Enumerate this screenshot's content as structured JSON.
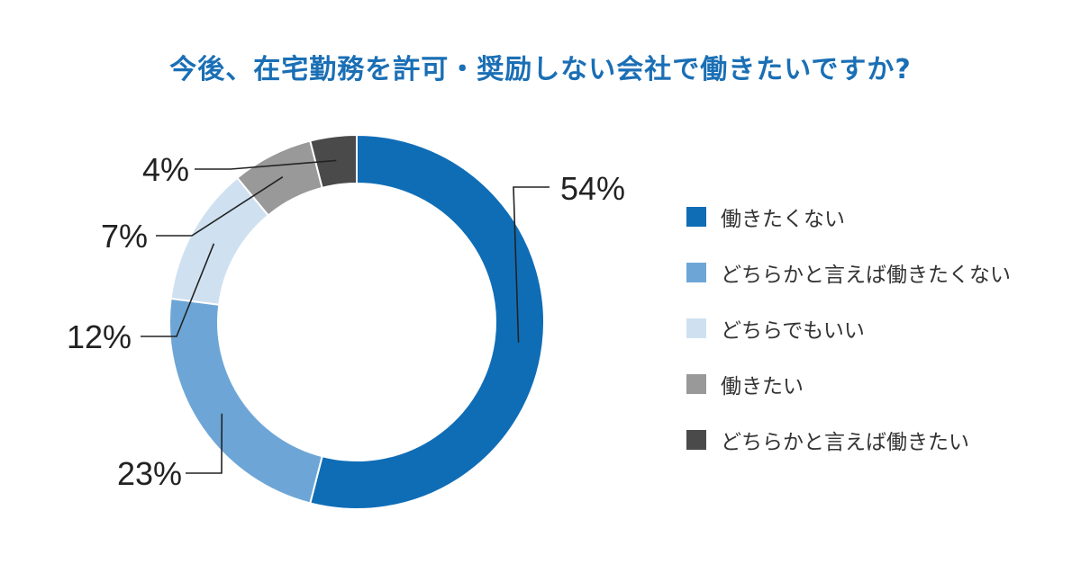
{
  "title": "今後、在宅勤務を許可・奨励しない会社で働きたいですか?",
  "chart_data": {
    "type": "pie",
    "title": "今後、在宅勤務を許可・奨励しない会社で働きたいですか?",
    "categories": [
      "働きたくない",
      "どちらかと言えば働きたくない",
      "どちらでもいい",
      "働きたい",
      "どちらかと言えば働きたい"
    ],
    "values": [
      54,
      23,
      12,
      7,
      4
    ],
    "value_labels": [
      "54%",
      "23%",
      "12%",
      "7%",
      "4%"
    ],
    "colors": [
      "#0f6db6",
      "#6da6d6",
      "#cfe1f0",
      "#999999",
      "#4a4a4a"
    ],
    "donut": true,
    "legend_position": "right"
  }
}
